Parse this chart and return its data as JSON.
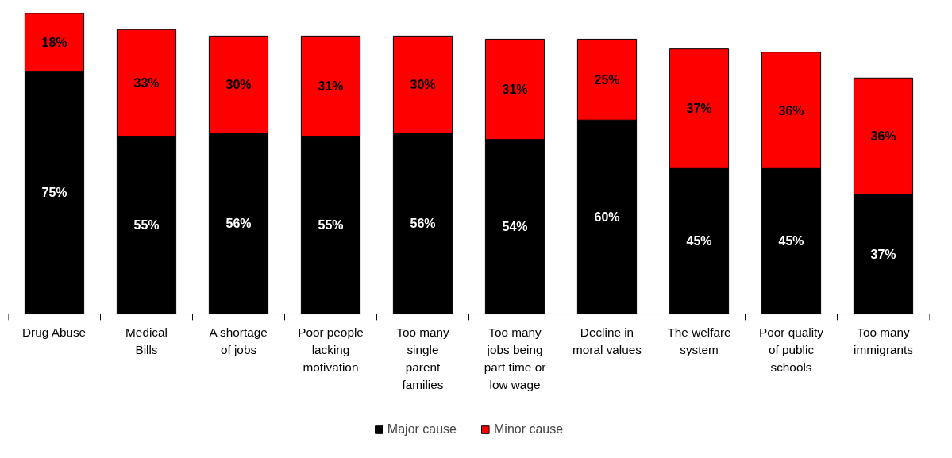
{
  "chart_data": {
    "type": "bar",
    "stacked": true,
    "legend": "bottom",
    "grid": false,
    "categories": [
      "Drug Abuse",
      "Medical Bills",
      "A shortage of jobs",
      "Poor people lacking motivation",
      "Too many single parent families",
      "Too many jobs being part time or low wage",
      "Decline in moral values",
      "The welfare system",
      "Poor quality of public schools",
      "Too many immigrants"
    ],
    "series": [
      {
        "name": "Major cause",
        "color": "#000000",
        "values": [
          75,
          55,
          56,
          55,
          56,
          54,
          60,
          45,
          45,
          37
        ],
        "value_labels": [
          "75%",
          "55%",
          "56%",
          "55%",
          "56%",
          "54%",
          "60%",
          "45%",
          "45%",
          "37%"
        ]
      },
      {
        "name": "Minor cause",
        "color": "#ff0000",
        "values": [
          18,
          33,
          30,
          31,
          30,
          31,
          25,
          37,
          36,
          36
        ],
        "value_labels": [
          "18%",
          "33%",
          "30%",
          "31%",
          "30%",
          "31%",
          "25%",
          "37%",
          "36%",
          "36%"
        ]
      }
    ]
  }
}
